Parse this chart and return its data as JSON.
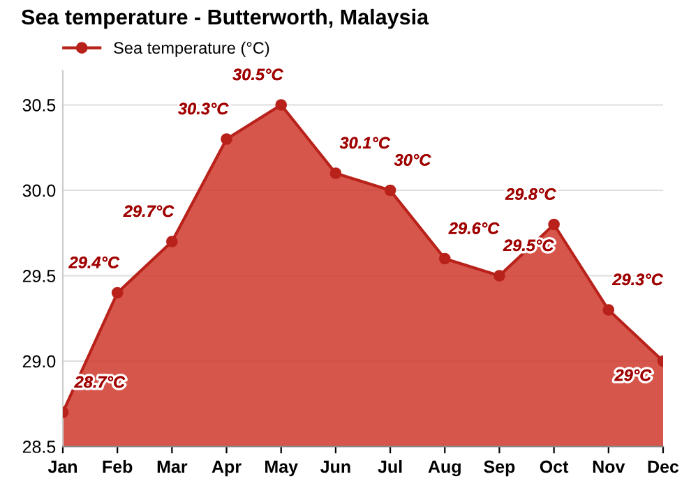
{
  "chart_data": {
    "type": "area",
    "title": "Sea temperature - Butterworth, Malaysia",
    "categories": [
      "Jan",
      "Feb",
      "Mar",
      "Apr",
      "May",
      "Jun",
      "Jul",
      "Aug",
      "Sep",
      "Oct",
      "Nov",
      "Dec"
    ],
    "series": [
      {
        "name": "Sea temperature (°C)",
        "color": "#d0382b",
        "values": [
          28.7,
          29.4,
          29.7,
          30.3,
          30.5,
          30.1,
          30.0,
          29.6,
          29.5,
          29.8,
          29.3,
          29.0
        ],
        "value_labels": [
          "28.7°C",
          "29.4°C",
          "29.7°C",
          "30.3°C",
          "30.5°C",
          "30.1°C",
          "30°C",
          "29.6°C",
          "29.5°C",
          "29.8°C",
          "29.3°C",
          "29°C"
        ]
      }
    ],
    "ylim": [
      28.5,
      30.7
    ],
    "yticks": [
      28.5,
      {
        "value": 29,
        "label": "29.0"
      },
      29.5,
      {
        "value": 30,
        "label": "30.0"
      },
      30.5
    ],
    "grid": "y",
    "legend": "top left",
    "marker": "circle"
  }
}
